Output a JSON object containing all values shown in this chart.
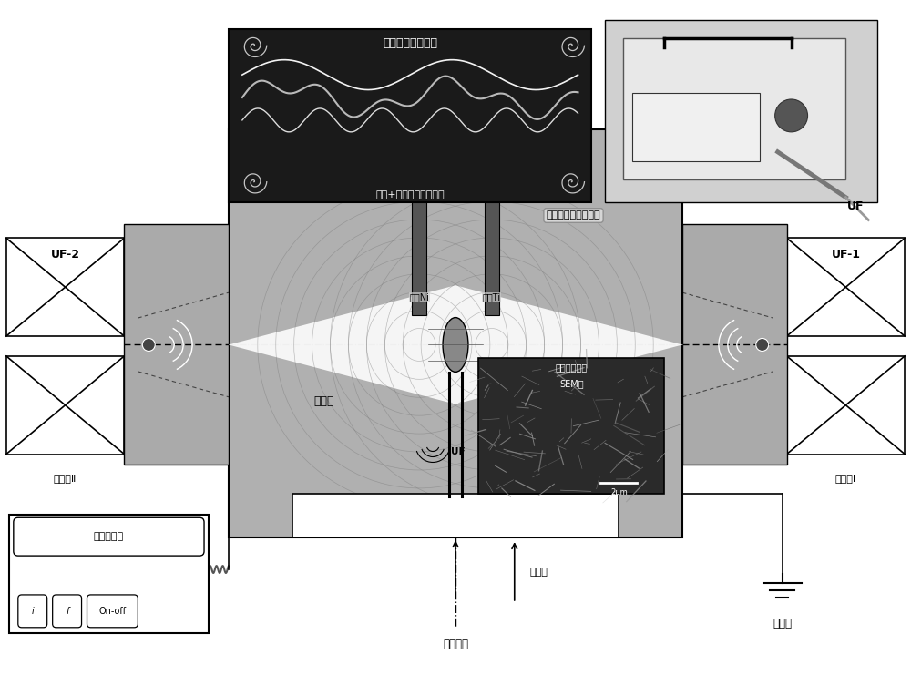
{
  "bg_color": "#ffffff",
  "fig_width": 10.0,
  "fig_height": 7.41,
  "top_panel_label": "交变振荡波形疊加",
  "top_panel_sublabel": "水平+竖直两方位超声场",
  "center_label": "超声辅助脉冲电沉积",
  "anode_label": "阳极Ni",
  "cathode_label": "阴极Ti",
  "left_label": "UF-2",
  "left_sublabel": "发射器Ⅱ",
  "right_label": "UF-1",
  "right_sublabel": "发射器Ⅰ",
  "electrolyte_label": "电解液",
  "pump_label": "循环泵",
  "stir_label": "连续攀拌",
  "ground_label": "接地线",
  "power_label": "双脉冲电源",
  "power_i": "i",
  "power_f": "f",
  "power_onoff": "On-off",
  "sem_label1": "类似波形织构",
  "sem_label2": "SEM图",
  "sem_uf_label": "UF",
  "uf_label": "UF"
}
